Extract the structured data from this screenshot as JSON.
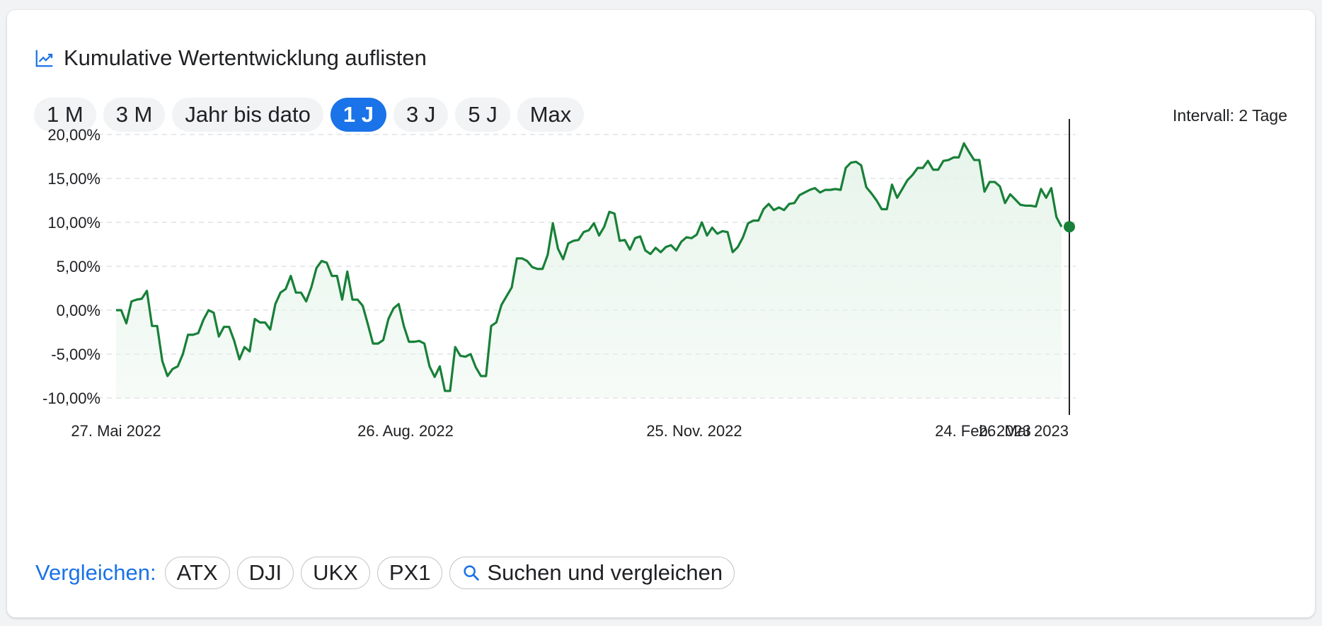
{
  "header": {
    "title": "Kumulative Wertentwicklung auflisten",
    "icon": "trending-up-icon"
  },
  "ranges": [
    {
      "label": "1 M",
      "active": false
    },
    {
      "label": "3 M",
      "active": false
    },
    {
      "label": "Jahr bis dato",
      "active": false
    },
    {
      "label": "1 J",
      "active": true
    },
    {
      "label": "3 J",
      "active": false
    },
    {
      "label": "5 J",
      "active": false
    },
    {
      "label": "Max",
      "active": false
    }
  ],
  "interval": "Intervall: 2 Tage",
  "compare": {
    "label": "Vergleichen:",
    "items": [
      "ATX",
      "DJI",
      "UKX",
      "PX1"
    ],
    "search_label": "Suchen und vergleichen",
    "search_icon": "search-icon"
  },
  "colors": {
    "line": "#188038",
    "accent": "#1a73e8",
    "fill": "#e6f4ea"
  },
  "chart_data": {
    "type": "area",
    "x_tick_labels": [
      "27. Mai 2022",
      "26. Aug. 2022",
      "25. Nov. 2022",
      "24. Feb. 2023",
      "26. Mai 2023"
    ],
    "y_tick_labels": [
      "20,00%",
      "15,00%",
      "10,00%",
      "5,00%",
      "0,00%",
      "-5,00%",
      "-10,00%"
    ],
    "y_ticks": [
      20,
      15,
      10,
      5,
      0,
      -5,
      -10
    ],
    "ylim": [
      -10,
      20
    ],
    "grid": true,
    "y_unit": "%",
    "series": [
      {
        "values": [
          0.0,
          0.0,
          -1.5,
          1.0,
          1.2,
          1.3,
          2.2,
          -1.8,
          -1.8,
          -5.8,
          -7.5,
          -6.7,
          -6.4,
          -5.0,
          -2.8,
          -2.8,
          -2.6,
          -1.1,
          0.0,
          -0.3,
          -3.0,
          -1.9,
          -1.9,
          -3.5,
          -5.6,
          -4.2,
          -4.7,
          -1.0,
          -1.4,
          -1.4,
          -2.2,
          0.7,
          2.0,
          2.4,
          3.9,
          2.0,
          2.0,
          1.0,
          2.6,
          4.8,
          5.6,
          5.4,
          3.9,
          3.9,
          1.2,
          4.4,
          1.2,
          1.2,
          0.5,
          -1.6,
          -3.8,
          -3.8,
          -3.4,
          -1.0,
          0.2,
          0.7,
          -1.8,
          -3.6,
          -3.6,
          -3.5,
          -3.8,
          -6.4,
          -7.6,
          -6.4,
          -9.2,
          -9.2,
          -4.2,
          -5.2,
          -5.3,
          -5.0,
          -6.5,
          -7.5,
          -7.5,
          -1.8,
          -1.4,
          0.6,
          1.6,
          2.6,
          5.9,
          5.9,
          5.6,
          4.9,
          4.7,
          4.7,
          6.3,
          9.9,
          7.0,
          5.8,
          7.6,
          7.9,
          8.0,
          8.9,
          9.1,
          9.9,
          8.5,
          9.5,
          11.2,
          11.0,
          7.9,
          8.0,
          6.9,
          8.2,
          8.4,
          6.8,
          6.4,
          7.1,
          6.6,
          7.2,
          7.4,
          6.8,
          7.8,
          8.3,
          8.2,
          8.6,
          10.0,
          8.5,
          9.4,
          8.7,
          9.0,
          8.9,
          6.6,
          7.2,
          8.3,
          9.9,
          10.2,
          10.2,
          11.5,
          12.1,
          11.4,
          11.7,
          11.4,
          12.1,
          12.2,
          13.1,
          13.4,
          13.7,
          13.9,
          13.4,
          13.7,
          13.7,
          13.8,
          13.7,
          16.2,
          16.8,
          16.9,
          16.5,
          14.0,
          13.3,
          12.5,
          11.5,
          11.5,
          14.3,
          12.8,
          13.8,
          14.8,
          15.4,
          16.2,
          16.2,
          17.0,
          16.0,
          16.0,
          17.0,
          17.1,
          17.4,
          17.4,
          19.0,
          18.0,
          17.1,
          17.1,
          13.5,
          14.6,
          14.6,
          14.1,
          12.2,
          13.2,
          12.6,
          12.0,
          11.9,
          11.9,
          11.8,
          13.8,
          12.8,
          13.9,
          10.6,
          9.5
        ]
      }
    ],
    "last_value": 9.5
  }
}
